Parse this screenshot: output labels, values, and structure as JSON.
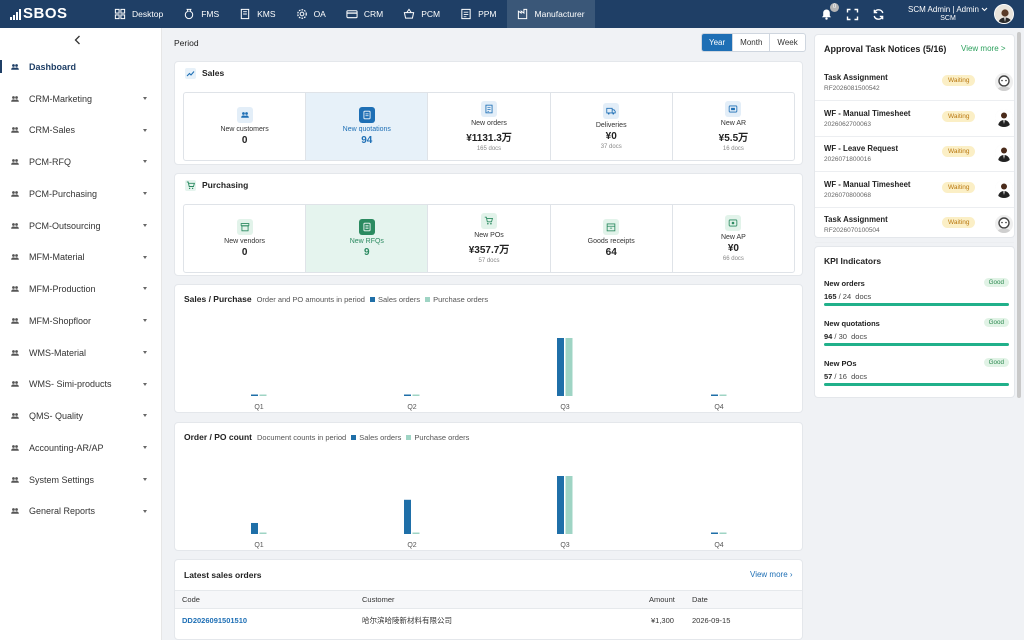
{
  "app": {
    "logo_text": "SBOS"
  },
  "colors": {
    "nav_bg": "#1f3f66",
    "accent": "#1e6fb5",
    "sales_bar": "#1f6fa8",
    "purchase_bar": "#9fd4c4",
    "kpi_bar": "#20b08a"
  },
  "nav": {
    "items": [
      {
        "label": "Desktop",
        "icon": "desktop-icon"
      },
      {
        "label": "FMS",
        "icon": "money-bag-icon"
      },
      {
        "label": "KMS",
        "icon": "book-icon"
      },
      {
        "label": "OA",
        "icon": "gear-icon"
      },
      {
        "label": "CRM",
        "icon": "card-icon"
      },
      {
        "label": "PCM",
        "icon": "basket-icon"
      },
      {
        "label": "PPM",
        "icon": "document-icon"
      },
      {
        "label": "Manufacturer",
        "icon": "factory-icon"
      }
    ],
    "active_index": 7
  },
  "header": {
    "notification_count": "0",
    "user_name": "SCM Admin | Admin",
    "user_role": "SCM"
  },
  "sidebar": {
    "items": [
      {
        "label": "Dashboard"
      },
      {
        "label": "CRM-Marketing"
      },
      {
        "label": "CRM-Sales"
      },
      {
        "label": "PCM-RFQ"
      },
      {
        "label": "PCM-Purchasing"
      },
      {
        "label": "PCM-Outsourcing"
      },
      {
        "label": "MFM-Material"
      },
      {
        "label": "MFM-Production"
      },
      {
        "label": "MFM-Shopfloor"
      },
      {
        "label": "WMS-Material"
      },
      {
        "label": "WMS- Simi-products"
      },
      {
        "label": "QMS- Quality"
      },
      {
        "label": "Accounting-AR/AP"
      },
      {
        "label": "System Settings"
      },
      {
        "label": "General Reports"
      }
    ],
    "active_index": 0
  },
  "period": {
    "label": "Period",
    "options": [
      "Year",
      "Month",
      "Week"
    ],
    "selected": "Year"
  },
  "sales": {
    "title": "Sales",
    "stats": [
      {
        "label": "New customers",
        "value": "0",
        "sub": "",
        "icon": "people-icon"
      },
      {
        "label": "New quotations",
        "value": "94",
        "sub": "",
        "icon": "quotation-icon"
      },
      {
        "label": "New orders",
        "value": "¥1131.3万",
        "sub": "165 docs",
        "icon": "order-icon"
      },
      {
        "label": "Deliveries",
        "value": "¥0",
        "sub": "37 docs",
        "icon": "truck-icon"
      },
      {
        "label": "New AR",
        "value": "¥5.5万",
        "sub": "16 docs",
        "icon": "receivable-icon"
      }
    ]
  },
  "purchasing": {
    "title": "Purchasing",
    "stats": [
      {
        "label": "New vendors",
        "value": "0",
        "sub": "",
        "icon": "store-icon"
      },
      {
        "label": "New RFQs",
        "value": "9",
        "sub": "",
        "icon": "rfq-icon"
      },
      {
        "label": "New POs",
        "value": "¥357.7万",
        "sub": "57 docs",
        "icon": "cart-icon"
      },
      {
        "label": "Goods receipts",
        "value": "64",
        "sub": "",
        "icon": "box-icon"
      },
      {
        "label": "New AP",
        "value": "¥0",
        "sub": "66 docs",
        "icon": "payable-icon"
      }
    ]
  },
  "chart_amount": {
    "title": "Sales / Purchase",
    "subtitle": "Order and PO amounts in period",
    "legend": [
      "Sales orders",
      "Purchase orders"
    ]
  },
  "chart_count": {
    "title": "Order / PO count",
    "subtitle": "Document counts in period",
    "legend": [
      "Sales orders",
      "Purchase orders"
    ]
  },
  "chart_data": [
    {
      "type": "bar",
      "title": "Sales / Purchase",
      "subtitle": "Order and PO amounts in period",
      "categories": [
        "Q1",
        "Q2",
        "Q3",
        "Q4"
      ],
      "series": [
        {
          "name": "Sales orders",
          "values": [
            0.5,
            0.5,
            100,
            0.5
          ]
        },
        {
          "name": "Purchase orders",
          "values": [
            0.5,
            0.5,
            100,
            0.5
          ]
        }
      ],
      "ylim": [
        0,
        100
      ],
      "grid": false,
      "legend": "top-left"
    },
    {
      "type": "bar",
      "title": "Order / PO count",
      "subtitle": "Document counts in period",
      "categories": [
        "Q1",
        "Q2",
        "Q3",
        "Q4"
      ],
      "series": [
        {
          "name": "Sales orders",
          "values": [
            19,
            59,
            100,
            2
          ]
        },
        {
          "name": "Purchase orders",
          "values": [
            2,
            2,
            100,
            2
          ]
        }
      ],
      "ylim": [
        0,
        100
      ],
      "grid": false,
      "legend": "top-left"
    }
  ],
  "latest_orders": {
    "title": "Latest sales orders",
    "view_more": "View more ›",
    "columns": [
      "Code",
      "Customer",
      "Amount",
      "Date"
    ],
    "rows": [
      {
        "code": "DD2026091501510",
        "customer": "哈尔滨哈陵新材料有限公司",
        "amount": "¥1,300",
        "date": "2026-09-15"
      }
    ]
  },
  "approvals": {
    "title": "Approval Task Notices (5/16)",
    "view_more": "View more >",
    "tasks": [
      {
        "title": "Task Assignment",
        "code": "RF2026081500542",
        "status": "Waiting",
        "avatar": "avatar-light"
      },
      {
        "title": "WF - Manual Timesheet",
        "code": "2026062700063",
        "status": "Waiting",
        "avatar": "avatar-suit"
      },
      {
        "title": "WF - Leave Request",
        "code": "2026071800016",
        "status": "Waiting",
        "avatar": "avatar-suit"
      },
      {
        "title": "WF - Manual Timesheet",
        "code": "2026070800068",
        "status": "Waiting",
        "avatar": "avatar-suit"
      },
      {
        "title": "Task Assignment",
        "code": "RF2026070100504",
        "status": "Waiting",
        "avatar": "avatar-light"
      }
    ]
  },
  "kpi": {
    "title": "KPI Indicators",
    "items": [
      {
        "name": "New orders",
        "actual": "165",
        "target": "24",
        "unit": "docs",
        "status": "Good",
        "progress": 1.0
      },
      {
        "name": "New quotations",
        "actual": "94",
        "target": "30",
        "unit": "docs",
        "status": "Good",
        "progress": 1.0
      },
      {
        "name": "New POs",
        "actual": "57",
        "target": "16",
        "unit": "docs",
        "status": "Good",
        "progress": 1.0
      }
    ]
  }
}
